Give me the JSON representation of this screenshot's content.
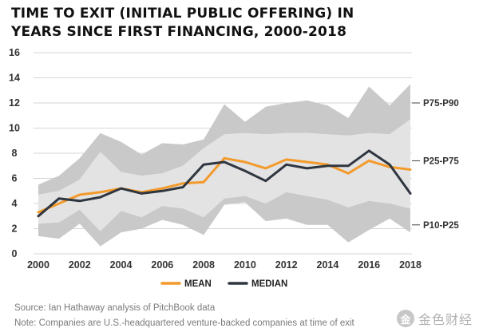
{
  "title": {
    "line1": "TIME TO EXIT (INITIAL PUBLIC OFFERING) IN",
    "line2": "YEARS SINCE FIRST FINANCING, 2000-2018"
  },
  "colors": {
    "mean": "#f39a2b",
    "median": "#2f3640",
    "band_outer": "#c9c9c9",
    "band_inner": "#e3e3e3"
  },
  "chart_data": {
    "type": "line",
    "title": "TIME TO EXIT (INITIAL PUBLIC OFFERING) IN YEARS SINCE FIRST FINANCING, 2000-2018",
    "xlabel": "",
    "ylabel": "",
    "x": [
      2000,
      2001,
      2002,
      2003,
      2004,
      2005,
      2006,
      2007,
      2008,
      2009,
      2010,
      2011,
      2012,
      2013,
      2014,
      2015,
      2016,
      2017,
      2018
    ],
    "xticks": [
      "2000",
      "2002",
      "2004",
      "2006",
      "2008",
      "2010",
      "2012",
      "2014",
      "2016",
      "2018"
    ],
    "yticks": [
      "0",
      "2",
      "4",
      "6",
      "8",
      "10",
      "12",
      "14",
      "16"
    ],
    "ylim": [
      0,
      16
    ],
    "grid": true,
    "series": [
      {
        "name": "MEAN",
        "values": [
          3.3,
          4.0,
          4.7,
          4.9,
          5.2,
          4.9,
          5.2,
          5.6,
          5.7,
          7.6,
          7.3,
          6.8,
          7.5,
          7.3,
          7.1,
          6.4,
          7.4,
          6.9,
          6.7
        ]
      },
      {
        "name": "MEDIAN",
        "values": [
          3.0,
          4.4,
          4.2,
          4.5,
          5.2,
          4.8,
          5.0,
          5.3,
          7.1,
          7.3,
          6.6,
          5.8,
          7.1,
          6.8,
          7.0,
          7.0,
          8.2,
          7.1,
          4.8
        ]
      }
    ],
    "bands": [
      {
        "name": "P75-P90",
        "upper": [
          5.5,
          6.2,
          7.6,
          9.6,
          8.9,
          7.9,
          8.8,
          8.7,
          9.1,
          11.9,
          10.5,
          11.7,
          12.0,
          12.2,
          11.8,
          10.8,
          13.3,
          11.8,
          13.5
        ],
        "lower": [
          4.7,
          5.0,
          5.9,
          8.1,
          6.5,
          6.2,
          6.4,
          7.0,
          8.4,
          9.5,
          9.6,
          9.5,
          9.6,
          9.6,
          9.5,
          9.4,
          9.6,
          9.5,
          10.7
        ]
      },
      {
        "name": "P25-P75",
        "upper": [
          4.7,
          5.0,
          5.9,
          8.1,
          6.5,
          6.2,
          6.4,
          7.0,
          8.4,
          9.5,
          9.6,
          9.5,
          9.6,
          9.6,
          9.5,
          9.4,
          9.6,
          9.5,
          10.7
        ],
        "lower": [
          2.4,
          2.5,
          3.5,
          1.8,
          3.4,
          2.9,
          3.8,
          3.6,
          2.9,
          4.4,
          4.6,
          4.0,
          4.9,
          4.6,
          4.3,
          3.7,
          4.2,
          4.0,
          3.6
        ]
      },
      {
        "name": "P10-P25",
        "upper": [
          2.4,
          2.5,
          3.5,
          1.8,
          3.4,
          2.9,
          3.8,
          3.6,
          2.9,
          4.4,
          4.6,
          4.0,
          4.9,
          4.6,
          4.3,
          3.7,
          4.2,
          4.0,
          3.6
        ],
        "lower": [
          1.4,
          1.2,
          2.4,
          0.6,
          1.7,
          2.0,
          2.7,
          2.3,
          1.5,
          3.9,
          4.1,
          2.6,
          2.8,
          2.3,
          2.3,
          0.9,
          1.9,
          2.8,
          1.7
        ]
      }
    ],
    "band_labels": [
      {
        "text": "P75-P90",
        "y": 12.0
      },
      {
        "text": "P25-P75",
        "y": 7.4
      },
      {
        "text": "P10-P25",
        "y": 2.3
      }
    ],
    "legend": [
      {
        "label": "MEAN",
        "series": "MEAN"
      },
      {
        "label": "MEDIAN",
        "series": "MEDIAN"
      }
    ],
    "legend_position": "bottom-center"
  },
  "footer": {
    "source": "Source: Ian Hathaway analysis of PitchBook data",
    "note": "Note: Companies are U.S.-headquartered venture-backed companies at time of exit"
  },
  "watermark": {
    "logo_text": "金",
    "text": "金色财经"
  }
}
